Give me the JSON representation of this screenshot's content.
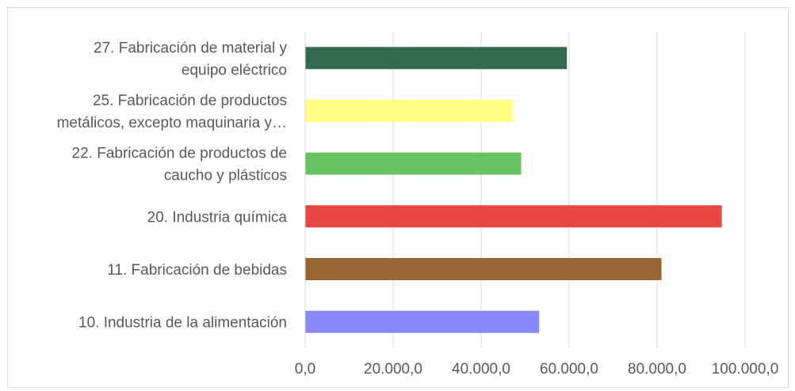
{
  "chart_data": {
    "type": "bar",
    "orientation": "horizontal",
    "categories": [
      [
        "10. Industria de la alimentación"
      ],
      [
        "11. Fabricación de bebidas"
      ],
      [
        "20. Industria química"
      ],
      [
        "22. Fabricación de productos de",
        "caucho y plásticos"
      ],
      [
        "25. Fabricación de productos",
        "metálicos, excepto maquinaria y…"
      ],
      [
        "27. Fabricación de material y",
        "equipo eléctrico"
      ]
    ],
    "values": [
      53200,
      81000,
      94700,
      49100,
      47300,
      59500
    ],
    "colors": [
      "#8888ff",
      "#996633",
      "#e84545",
      "#66c462",
      "#ffff80",
      "#336b50"
    ],
    "xlim": [
      0,
      100000
    ],
    "xticks": [
      0,
      20000,
      40000,
      60000,
      80000,
      100000
    ],
    "xtick_labels": [
      "0,0",
      "20.000,0",
      "40.000,0",
      "60.000,0",
      "80.000,0",
      "100.000,0"
    ],
    "grid": true,
    "legend": false
  }
}
